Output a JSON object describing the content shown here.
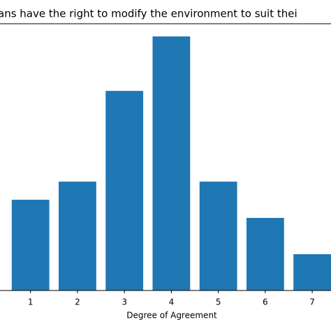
{
  "chart_data": {
    "type": "bar",
    "title": "ans have the right to modify the environment to suit thei",
    "xlabel": "Degree of Agreement",
    "x": [
      1,
      2,
      3,
      4,
      5,
      6,
      7
    ],
    "values": [
      5,
      6,
      11,
      14,
      6,
      4,
      2
    ],
    "color": "#1f77b4",
    "xlim": [
      0.35,
      7.4
    ],
    "xticks": [
      1,
      2,
      3,
      4,
      5,
      6,
      7
    ],
    "ylim": [
      0,
      14.7
    ]
  }
}
